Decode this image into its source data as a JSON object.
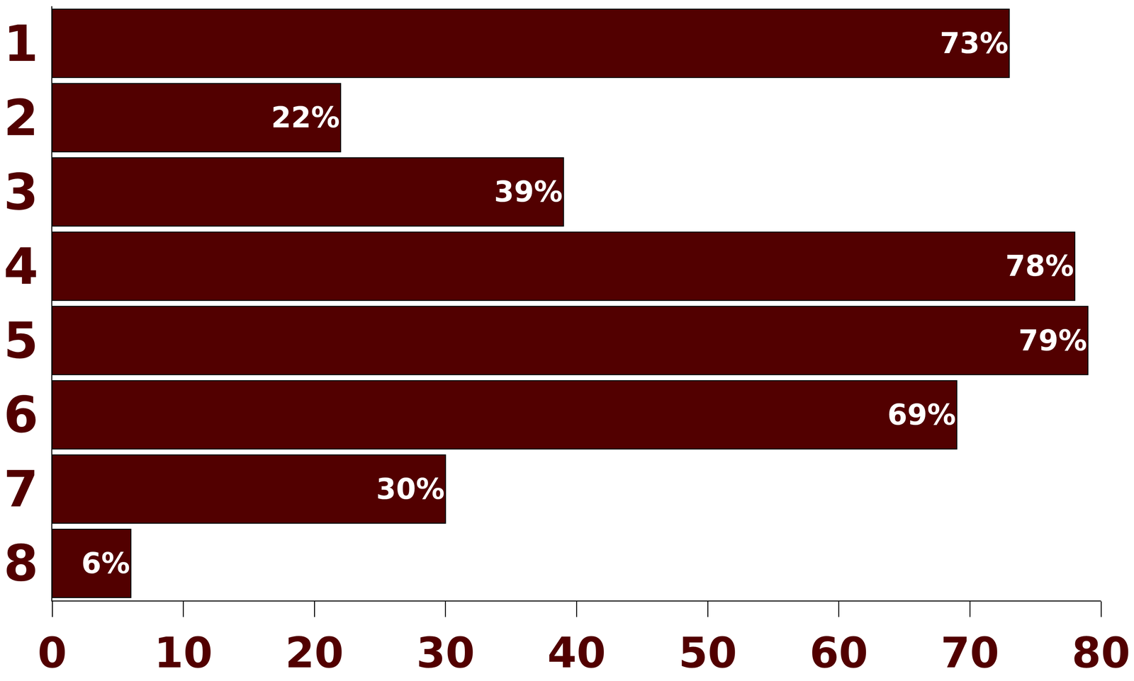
{
  "chart_data": {
    "type": "bar",
    "orientation": "horizontal",
    "categories": [
      "1",
      "2",
      "3",
      "4",
      "5",
      "6",
      "7",
      "8"
    ],
    "values": [
      73,
      22,
      39,
      78,
      79,
      69,
      30,
      6
    ],
    "value_labels": [
      "73%",
      "22%",
      "39%",
      "78%",
      "79%",
      "69%",
      "30%",
      "6%"
    ],
    "color": "#520000",
    "xlim": [
      0,
      80
    ],
    "xticks": [
      0,
      10,
      20,
      30,
      40,
      50,
      60,
      70,
      80
    ],
    "grid": false,
    "data_labels": true
  }
}
